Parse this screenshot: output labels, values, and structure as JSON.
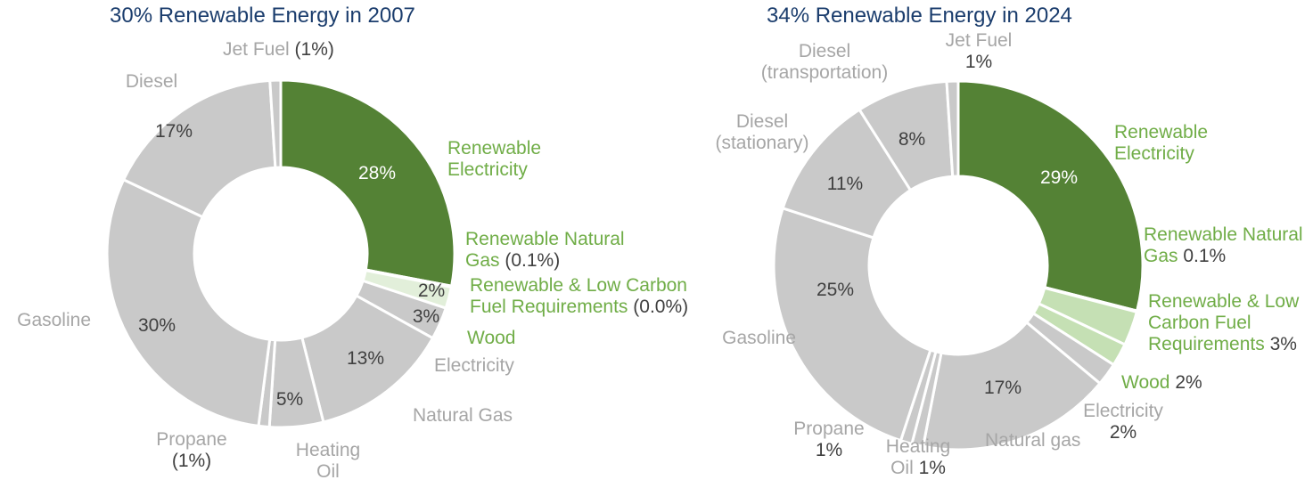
{
  "chart_data": [
    {
      "type": "pie",
      "donut": true,
      "title": "30% Renewable Energy in 2007",
      "categories": [
        "Renewable Electricity",
        "Renewable Natural Gas",
        "Renewable & Low Carbon Fuel Requirements",
        "Wood",
        "Electricity",
        "Natural Gas",
        "Heating Oil",
        "Propane",
        "Gasoline",
        "Diesel",
        "Jet Fuel"
      ],
      "values": [
        28,
        0.1,
        0.0,
        2,
        3,
        13,
        5,
        1,
        30,
        17,
        1
      ],
      "value_labels": [
        "28%",
        "(0.1%)",
        "(0.0%)",
        "2%",
        "3%",
        "13%",
        "5%",
        "(1%)",
        "30%",
        "17%",
        "(1%)"
      ],
      "colors": [
        "#548235",
        "#c5e0b4",
        "#c5e0b4",
        "#e2efda",
        "#c9c9c9",
        "#c9c9c9",
        "#c9c9c9",
        "#c9c9c9",
        "#c9c9c9",
        "#c9c9c9",
        "#c9c9c9"
      ],
      "label_colors": [
        "#70ad47",
        "#70ad47",
        "#70ad47",
        "#70ad47",
        "#a6a6a6",
        "#a6a6a6",
        "#a6a6a6",
        "#a6a6a6",
        "#a6a6a6",
        "#a6a6a6",
        "#a6a6a6"
      ]
    },
    {
      "type": "pie",
      "donut": true,
      "title": "34% Renewable Energy in 2024",
      "categories": [
        "Renewable Electricity",
        "Renewable Natural Gas",
        "Renewable & Low Carbon Fuel Requirements",
        "Wood",
        "Electricity",
        "Natural gas",
        "Heating Oil",
        "Propane",
        "Gasoline",
        "Diesel (stationary)",
        "Diesel (transportation)",
        "Jet Fuel"
      ],
      "values": [
        29,
        0.1,
        3,
        2,
        2,
        17,
        1,
        1,
        25,
        11,
        8,
        1
      ],
      "value_labels": [
        "29%",
        "0.1%",
        "3%",
        "2%",
        "2%",
        "17%",
        "1%",
        "1%",
        "25%",
        "11%",
        "8%",
        "1%"
      ],
      "colors": [
        "#548235",
        "#c5e0b4",
        "#c5e0b4",
        "#c5e0b4",
        "#c9c9c9",
        "#c9c9c9",
        "#c9c9c9",
        "#c9c9c9",
        "#c9c9c9",
        "#c9c9c9",
        "#c9c9c9",
        "#c9c9c9"
      ],
      "label_colors": [
        "#70ad47",
        "#70ad47",
        "#70ad47",
        "#70ad47",
        "#a6a6a6",
        "#a6a6a6",
        "#a6a6a6",
        "#a6a6a6",
        "#a6a6a6",
        "#a6a6a6",
        "#a6a6a6",
        "#a6a6a6"
      ]
    }
  ]
}
